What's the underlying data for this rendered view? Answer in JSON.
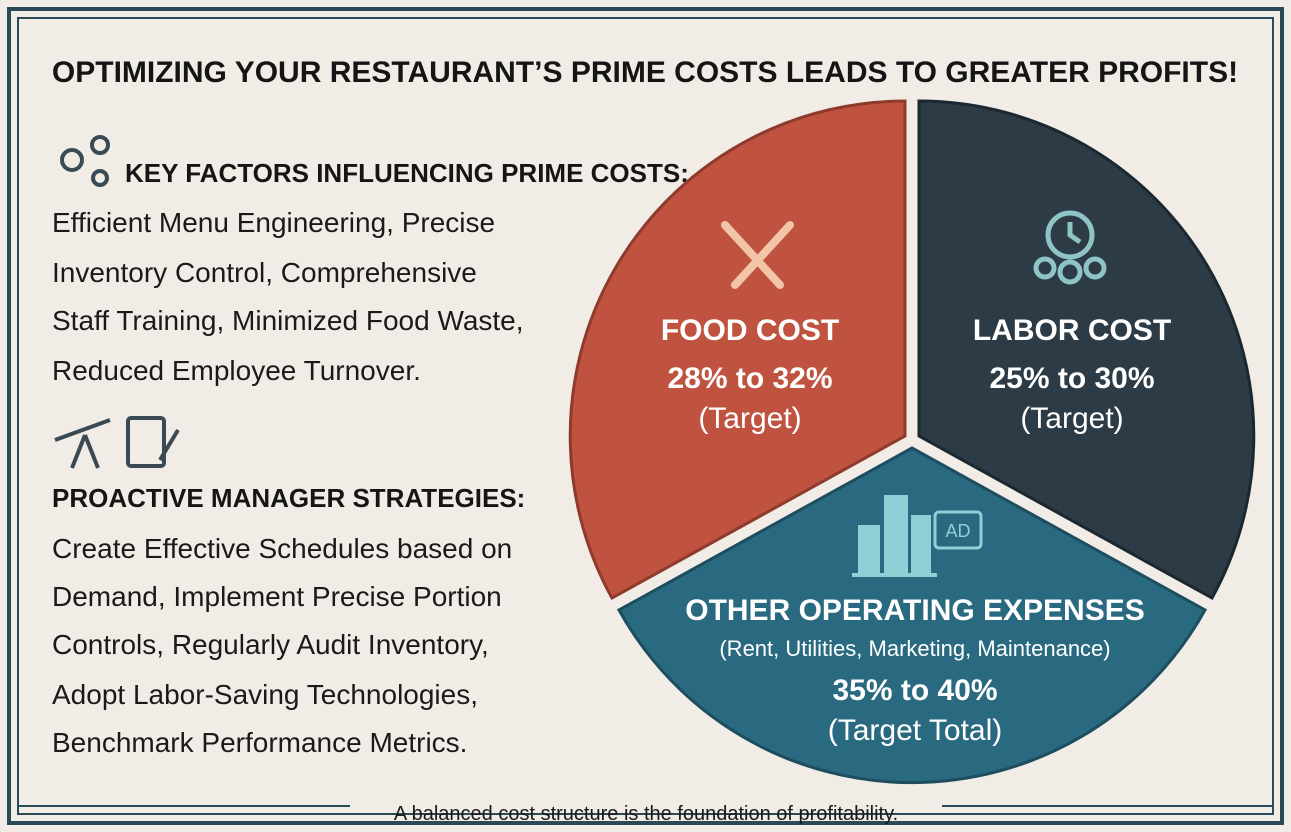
{
  "title": "OPTIMIZING YOUR RESTAURANT’S PRIME COSTS LEADS TO GREATER PROFITS!",
  "sections": [
    {
      "heading": "KEY FACTORS INFLUENCING PRIME COSTS:",
      "lines": [
        "Efficient Menu Engineering, Precise",
        "Inventory Control, Comprehensive",
        "Staff Training, Minimized Food Waste,",
        "Reduced Employee Turnover."
      ]
    },
    {
      "heading": "PROACTIVE MANAGER STRATEGIES:",
      "lines": [
        "Create Effective Schedules based on",
        "Demand, Implement Precise Portion",
        "Controls, Regularly Audit Inventory,",
        "Adopt Labor-Saving Technologies,",
        "Benchmark Performance Metrics."
      ]
    }
  ],
  "slices": [
    {
      "label": "FOOD COST",
      "range": "28% to 32%",
      "note": "(Target)"
    },
    {
      "label": "LABOR COST",
      "range": "25% to 30%",
      "note": "(Target)"
    },
    {
      "label": "OTHER OPERATING EXPENSES",
      "detail": "(Rent, Utilities, Marketing, Maintenance)",
      "range": "35% to 40%",
      "note": "(Target Total)",
      "icon_text": "AD"
    }
  ],
  "footer": "A balanced cost structure is the foundation of profitability."
}
